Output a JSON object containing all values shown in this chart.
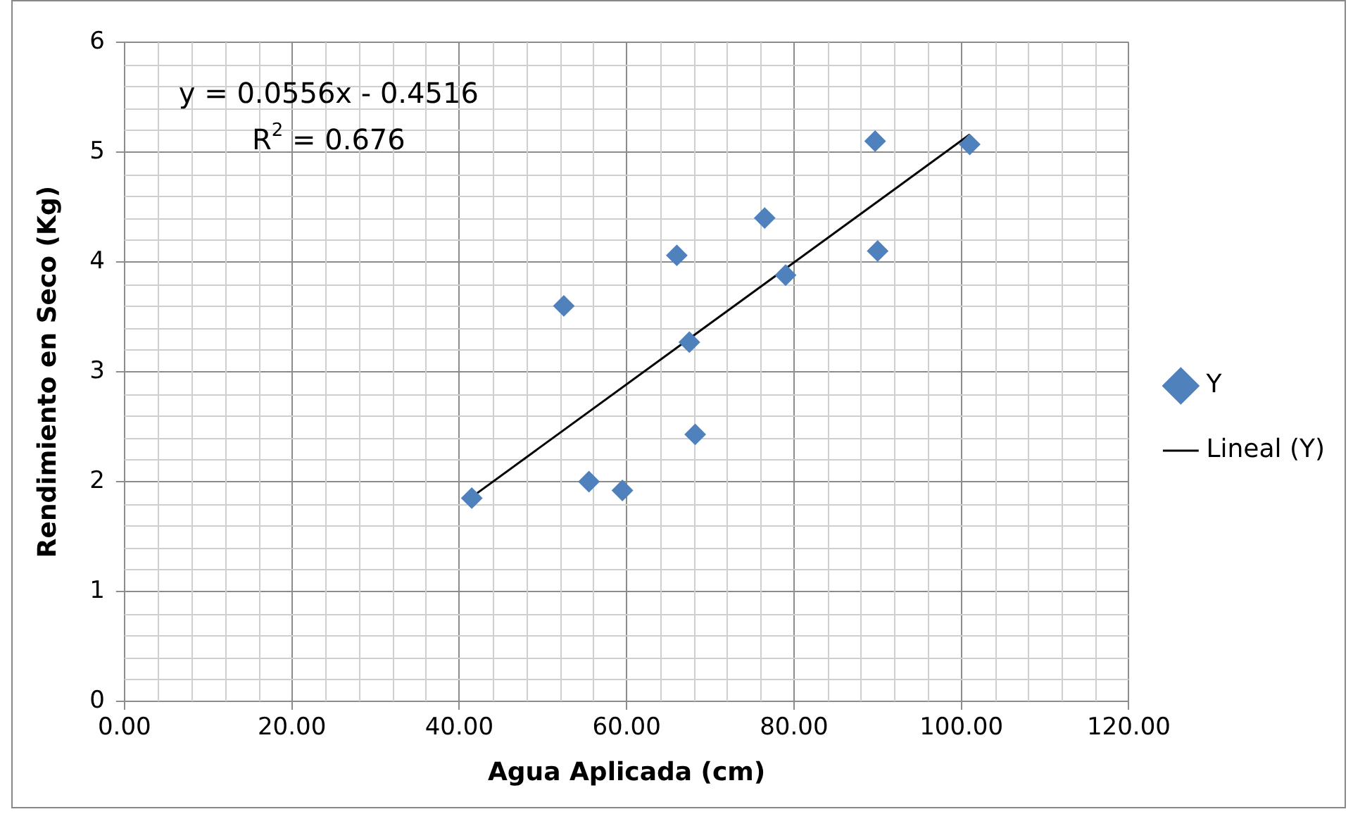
{
  "chart_data": {
    "type": "scatter",
    "xlabel": "Agua Aplicada (cm)",
    "ylabel": "Rendimiento en Seco (Kg)",
    "xlim": [
      0,
      120
    ],
    "xticks": [
      {
        "value": 0,
        "label": "0.00"
      },
      {
        "value": 20,
        "label": "20.00"
      },
      {
        "value": 40,
        "label": "40.00"
      },
      {
        "value": 60,
        "label": "60.00"
      },
      {
        "value": 80,
        "label": "80.00"
      },
      {
        "value": 100,
        "label": "100.00"
      },
      {
        "value": 120,
        "label": "120.00"
      }
    ],
    "ylim": [
      0,
      6
    ],
    "yticks": [
      0,
      1,
      2,
      3,
      4,
      5,
      6
    ],
    "grid": true,
    "legend": "right",
    "marker": "diamond",
    "series": [
      {
        "name": "Y",
        "color": "#4f81bd",
        "x": [
          41.5,
          52.5,
          55.5,
          59.5,
          66,
          67.5,
          68.2,
          76.5,
          79,
          89.7,
          90,
          101
        ],
        "values": [
          1.85,
          3.6,
          2.0,
          1.92,
          4.06,
          3.27,
          2.43,
          4.4,
          3.88,
          5.1,
          4.1,
          5.07
        ]
      },
      {
        "name": "Lineal (Y)",
        "type": "line",
        "color": "#000000",
        "marker": "none",
        "x": [
          41.5,
          101
        ],
        "values": [
          1.86,
          5.16
        ]
      }
    ],
    "annotations": [
      "y = 0.0556x - 0.4516",
      "R$^{2}$ = 0.676"
    ]
  }
}
